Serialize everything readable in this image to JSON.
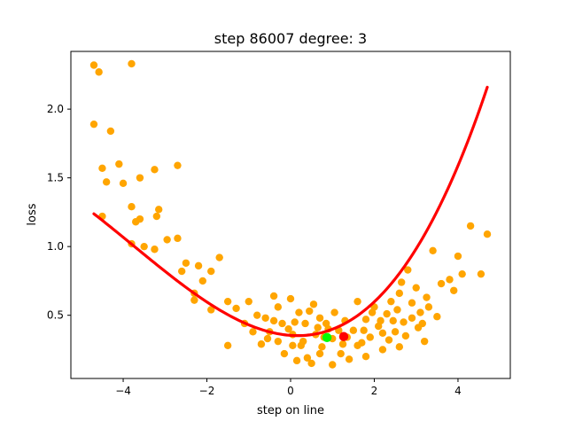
{
  "title": "step 86007   degree: 3",
  "chart_data": {
    "type": "scatter",
    "title": "step 86007   degree: 3",
    "xlabel": "step on line",
    "ylabel": "loss",
    "xlim": [
      -5.25,
      5.25
    ],
    "ylim": [
      0.04,
      2.42
    ],
    "xticks": [
      -4,
      -2,
      0,
      2,
      4
    ],
    "xtick_labels": [
      "−4",
      "−2",
      "0",
      "2",
      "4"
    ],
    "yticks": [
      0.5,
      1.0,
      1.5,
      2.0
    ],
    "ytick_labels": [
      "0.5",
      "1.0",
      "1.5",
      "2.0"
    ],
    "grid": false,
    "legend": "none",
    "colors": {
      "points": "#ffa500",
      "fit": "#ff0000",
      "marker_min": "#00ff00",
      "marker_current": "#ff0000",
      "axes": "#000000"
    },
    "series": [
      {
        "type": "scatter",
        "points": [
          [
            -4.7,
            2.32
          ],
          [
            -4.58,
            2.27
          ],
          [
            -3.8,
            2.33
          ],
          [
            -4.3,
            1.84
          ],
          [
            -4.5,
            1.57
          ],
          [
            -4.4,
            1.47
          ],
          [
            -4.1,
            1.6
          ],
          [
            -4.0,
            1.46
          ],
          [
            -3.8,
            1.29
          ],
          [
            -3.6,
            1.5
          ],
          [
            -3.7,
            1.18
          ],
          [
            -3.6,
            1.2
          ],
          [
            -3.5,
            1.0
          ],
          [
            -3.25,
            1.56
          ],
          [
            -3.2,
            1.22
          ],
          [
            -3.15,
            1.27
          ],
          [
            -3.25,
            0.98
          ],
          [
            -2.95,
            1.05
          ],
          [
            -2.7,
            1.59
          ],
          [
            -2.7,
            1.06
          ],
          [
            -2.6,
            0.82
          ],
          [
            -2.5,
            0.88
          ],
          [
            -2.3,
            0.66
          ],
          [
            -2.3,
            0.61
          ],
          [
            -2.1,
            0.75
          ],
          [
            -2.2,
            0.86
          ],
          [
            -1.9,
            0.82
          ],
          [
            -1.7,
            0.92
          ],
          [
            -1.9,
            0.54
          ],
          [
            -1.5,
            0.6
          ],
          [
            -1.5,
            0.28
          ],
          [
            -1.1,
            0.44
          ],
          [
            -1.0,
            0.6
          ],
          [
            -0.8,
            0.5
          ],
          [
            -0.4,
            0.64
          ],
          [
            -0.6,
            0.48
          ],
          [
            -0.5,
            0.38
          ],
          [
            -0.3,
            0.56
          ],
          [
            -0.2,
            0.44
          ],
          [
            -0.3,
            0.31
          ],
          [
            -0.15,
            0.22
          ],
          [
            0.0,
            0.62
          ],
          [
            0.1,
            0.45
          ],
          [
            0.05,
            0.36
          ],
          [
            0.2,
            0.52
          ],
          [
            0.25,
            0.28
          ],
          [
            0.35,
            0.44
          ],
          [
            0.4,
            0.19
          ],
          [
            0.55,
            0.58
          ],
          [
            0.6,
            0.36
          ],
          [
            0.7,
            0.48
          ],
          [
            0.75,
            0.27
          ],
          [
            0.85,
            0.44
          ],
          [
            1.0,
            0.33
          ],
          [
            1.05,
            0.52
          ],
          [
            1.2,
            0.22
          ],
          [
            1.3,
            0.46
          ],
          [
            1.5,
            0.39
          ],
          [
            1.6,
            0.6
          ],
          [
            1.7,
            0.3
          ],
          [
            1.8,
            0.47
          ],
          [
            1.9,
            0.34
          ],
          [
            2.0,
            0.56
          ],
          [
            2.1,
            0.42
          ],
          [
            2.2,
            0.25
          ],
          [
            2.3,
            0.51
          ],
          [
            2.4,
            0.6
          ],
          [
            2.5,
            0.38
          ],
          [
            2.6,
            0.66
          ],
          [
            2.7,
            0.45
          ],
          [
            2.8,
            0.83
          ],
          [
            2.9,
            0.59
          ],
          [
            3.0,
            0.7
          ],
          [
            3.1,
            0.52
          ],
          [
            3.2,
            0.31
          ],
          [
            3.25,
            0.63
          ],
          [
            3.4,
            0.97
          ],
          [
            3.5,
            0.49
          ],
          [
            3.6,
            0.73
          ],
          [
            3.8,
            0.76
          ],
          [
            3.9,
            0.68
          ],
          [
            4.0,
            0.93
          ],
          [
            4.1,
            0.8
          ],
          [
            4.3,
            1.15
          ],
          [
            4.55,
            0.8
          ],
          [
            4.7,
            1.09
          ],
          [
            -4.7,
            1.89
          ],
          [
            -4.5,
            1.22
          ],
          [
            -3.8,
            1.02
          ],
          [
            -1.3,
            0.55
          ],
          [
            -0.9,
            0.38
          ],
          [
            -0.7,
            0.29
          ],
          [
            0.15,
            0.17
          ],
          [
            0.5,
            0.15
          ],
          [
            1.0,
            0.14
          ],
          [
            1.4,
            0.18
          ],
          [
            1.8,
            0.2
          ],
          [
            2.6,
            0.27
          ],
          [
            3.05,
            0.41
          ],
          [
            2.2,
            0.37
          ],
          [
            1.6,
            0.28
          ],
          [
            0.9,
            0.4
          ],
          [
            0.3,
            0.31
          ],
          [
            -0.4,
            0.46
          ],
          [
            0.65,
            0.41
          ],
          [
            1.15,
            0.39
          ],
          [
            2.45,
            0.46
          ],
          [
            2.9,
            0.48
          ],
          [
            3.3,
            0.56
          ],
          [
            2.75,
            0.35
          ],
          [
            1.95,
            0.52
          ],
          [
            1.35,
            0.34
          ],
          [
            0.45,
            0.53
          ],
          [
            -0.05,
            0.4
          ],
          [
            -0.55,
            0.33
          ],
          [
            2.65,
            0.74
          ],
          [
            3.15,
            0.44
          ],
          [
            1.75,
            0.39
          ],
          [
            0.8,
            0.34
          ],
          [
            0.05,
            0.28
          ],
          [
            2.35,
            0.32
          ],
          [
            2.55,
            0.54
          ],
          [
            2.15,
            0.46
          ],
          [
            1.25,
            0.29
          ],
          [
            0.7,
            0.22
          ]
        ]
      },
      {
        "type": "line",
        "x_range": [
          -4.7,
          4.7
        ],
        "coefficients": [
          0.3536,
          -0.0213,
          0.0609,
          0.0054
        ]
      },
      {
        "type": "marker",
        "points": [
          [
            0.87,
            0.338
          ]
        ],
        "color_key": "marker_min"
      },
      {
        "type": "marker",
        "points": [
          [
            1.27,
            0.345
          ]
        ],
        "color_key": "marker_current"
      }
    ]
  }
}
